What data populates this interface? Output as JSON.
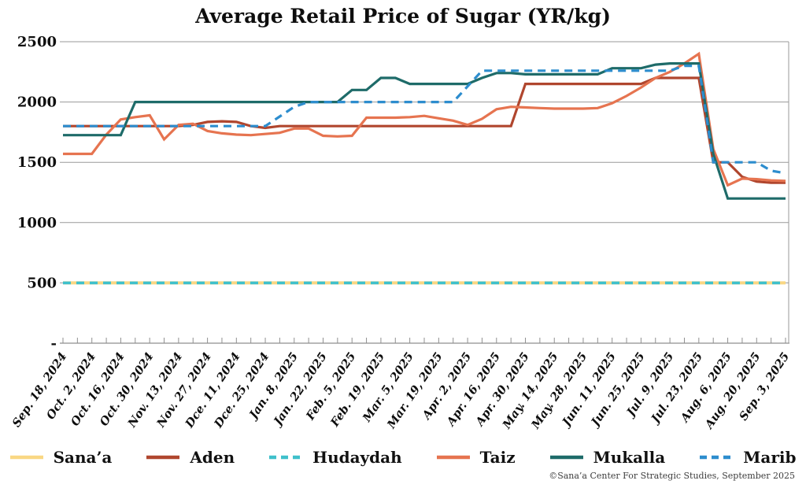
{
  "attribution": "©Sana’a Center For Strategic Studies, September 2025",
  "chart_data": {
    "type": "line",
    "title": "Average Retail Price of Sugar (YR/kg)",
    "xlabel": "",
    "ylabel": "",
    "ylim": [
      0,
      2500
    ],
    "grid": true,
    "legend_position": "bottom",
    "yticks": [
      {
        "value": 2500,
        "label": "2500"
      },
      {
        "value": 2000,
        "label": "2000"
      },
      {
        "value": 1500,
        "label": "1500"
      },
      {
        "value": 1000,
        "label": "1000"
      },
      {
        "value": 500,
        "label": "500"
      },
      {
        "value": 0,
        "label": "-"
      }
    ],
    "label_every": 2,
    "x_labels": [
      "Sep. 18, 2024",
      "Oct. 2, 2024",
      "Oct. 16, 2024",
      "Oct. 30, 2024",
      "Nov. 13, 2024",
      "Nov. 27, 2024",
      "Dce. 11, 2024",
      "Dce. 25, 2024",
      "Jan. 8, 2025",
      "Jan. 22, 2025",
      "Feb. 5, 2025",
      "Feb. 19, 2025",
      "Mar. 5, 2025",
      "Mar. 19, 2025",
      "Apr. 2, 2025",
      "Apr. 16, 2025",
      "Apr. 30, 2025",
      "May. 14, 2025",
      "May. 28, 2025",
      "Jun. 11, 2025",
      "Jun. 25, 2025",
      "Jul. 9, 2025",
      "Jul. 23, 2025",
      "Aug. 6, 2025",
      "Aug. 20, 2025",
      "Sep. 3, 2025"
    ],
    "series": [
      {
        "name": "Sana’a",
        "color": "#F9D783",
        "dash": "solid",
        "width": 4,
        "values": [
          500,
          500,
          500,
          500,
          500,
          500,
          500,
          500,
          500,
          500,
          500,
          500,
          500,
          500,
          500,
          500,
          500,
          500,
          500,
          500,
          500,
          500,
          500,
          500,
          500,
          500,
          500,
          500,
          500,
          500,
          500,
          500,
          500,
          500,
          500,
          500,
          500,
          500,
          500,
          500,
          500,
          500,
          500,
          500,
          500,
          500,
          500,
          500,
          500,
          500,
          500
        ]
      },
      {
        "name": "Aden",
        "color": "#B0462E",
        "dash": "solid",
        "width": 3.2,
        "values": [
          1800,
          1800,
          1800,
          1800,
          1800,
          1800,
          1800,
          1800,
          1800,
          1810,
          1835,
          1840,
          1835,
          1800,
          1785,
          1800,
          1800,
          1800,
          1800,
          1800,
          1800,
          1800,
          1800,
          1800,
          1800,
          1800,
          1800,
          1800,
          1800,
          1800,
          1800,
          1800,
          2150,
          2150,
          2150,
          2150,
          2150,
          2150,
          2150,
          2150,
          2150,
          2200,
          2200,
          2200,
          2200,
          1500,
          1500,
          1380,
          1340,
          1330,
          1330
        ]
      },
      {
        "name": "Hudaydah",
        "color": "#3FC0CB",
        "dash": "dashed",
        "width": 3.6,
        "values": [
          500,
          500,
          500,
          500,
          500,
          500,
          500,
          500,
          500,
          500,
          500,
          500,
          500,
          500,
          500,
          500,
          500,
          500,
          500,
          500,
          500,
          500,
          500,
          500,
          500,
          500,
          500,
          500,
          500,
          500,
          500,
          500,
          500,
          500,
          500,
          500,
          500,
          500,
          500,
          500,
          500,
          500,
          500,
          500,
          500,
          500,
          500,
          500,
          500,
          500,
          500
        ]
      },
      {
        "name": "Taiz",
        "color": "#E67450",
        "dash": "solid",
        "width": 3.2,
        "values": [
          1570,
          1570,
          1570,
          1730,
          1855,
          1875,
          1890,
          1690,
          1810,
          1820,
          1760,
          1740,
          1730,
          1725,
          1735,
          1745,
          1780,
          1780,
          1720,
          1715,
          1720,
          1870,
          1870,
          1870,
          1875,
          1885,
          1865,
          1845,
          1810,
          1860,
          1940,
          1960,
          1955,
          1950,
          1945,
          1945,
          1945,
          1950,
          1990,
          2050,
          2120,
          2200,
          2250,
          2320,
          2400,
          1610,
          1310,
          1365,
          1360,
          1350,
          1345
        ]
      },
      {
        "name": "Mukalla",
        "color": "#1E6B69",
        "dash": "solid",
        "width": 3.2,
        "values": [
          1725,
          1725,
          1725,
          1725,
          1725,
          2000,
          2000,
          2000,
          2000,
          2000,
          2000,
          2000,
          2000,
          2000,
          2000,
          2000,
          2000,
          2000,
          2000,
          2000,
          2100,
          2100,
          2200,
          2200,
          2150,
          2150,
          2150,
          2150,
          2150,
          2200,
          2240,
          2240,
          2230,
          2230,
          2230,
          2230,
          2230,
          2230,
          2280,
          2280,
          2280,
          2310,
          2320,
          2320,
          2320,
          1570,
          1200,
          1200,
          1200,
          1200,
          1200
        ]
      },
      {
        "name": "Marib",
        "color": "#2D8DCE",
        "dash": "dashed",
        "width": 3.2,
        "values": [
          1800,
          1800,
          1800,
          1800,
          1800,
          1800,
          1800,
          1800,
          1800,
          1800,
          1800,
          1800,
          1800,
          1800,
          1800,
          1880,
          1960,
          2000,
          2000,
          2000,
          2000,
          2000,
          2000,
          2000,
          2000,
          2000,
          2000,
          2000,
          2130,
          2260,
          2260,
          2260,
          2260,
          2260,
          2260,
          2260,
          2260,
          2260,
          2260,
          2260,
          2260,
          2260,
          2260,
          2300,
          2300,
          1500,
          1500,
          1500,
          1500,
          1430,
          1410
        ]
      }
    ]
  }
}
